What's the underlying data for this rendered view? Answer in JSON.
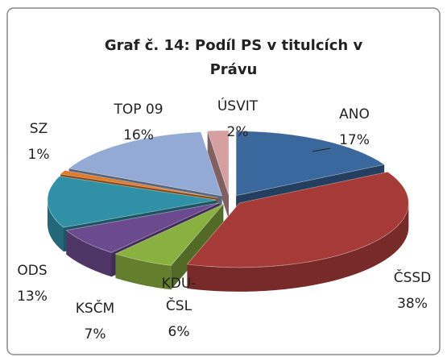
{
  "chart_data": {
    "type": "pie",
    "title": "Graf č. 14: Podíl PS v titulcích v Právu",
    "categories": [
      "ANO",
      "ČSSD",
      "KDU-ČSL",
      "KSČM",
      "ODS",
      "SZ",
      "TOP 09",
      "ÚSVIT"
    ],
    "values": [
      17,
      38,
      6,
      7,
      13,
      1,
      16,
      2
    ],
    "value_labels": [
      "17%",
      "38%",
      "6%",
      "7%",
      "13%",
      "1%",
      "16%",
      "2%"
    ],
    "colors": [
      "#3a679c",
      "#a63a37",
      "#89b13f",
      "#6b4b8e",
      "#2f90a6",
      "#e07b2a",
      "#93aad4",
      "#d6a0a0"
    ]
  }
}
